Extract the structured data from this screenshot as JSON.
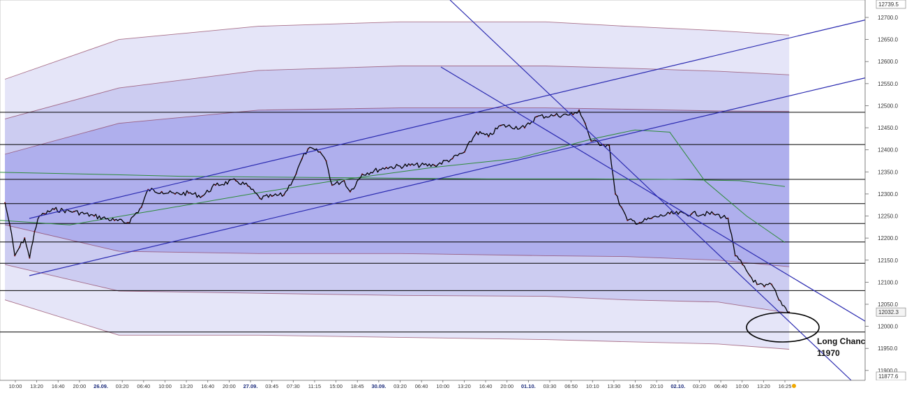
{
  "chart_data": {
    "type": "candlestick",
    "ylim": [
      11877.6,
      12739.5
    ],
    "y_axis": {
      "ticks": [
        11900,
        11950,
        12000,
        12050,
        12100,
        12150,
        12200,
        12250,
        12300,
        12350,
        12400,
        12450,
        12500,
        12550,
        12600,
        12650,
        12700
      ],
      "top_label": "12739.5",
      "bottom_label": "11877.6",
      "last_price_label": "12032.3",
      "last_price": 12032.3
    },
    "x_axis": {
      "labels": [
        "10:00",
        "13:20",
        "16:40",
        "20:00",
        "26.09.",
        "03:20",
        "06:40",
        "10:00",
        "13:20",
        "16:40",
        "20:00",
        "27.09.",
        "03:45",
        "07:30",
        "11:15",
        "15:00",
        "18:45",
        "30.09.",
        "03:20",
        "06:40",
        "10:00",
        "13:20",
        "16:40",
        "20:00",
        "01.10.",
        "03:30",
        "06:50",
        "10:10",
        "13:30",
        "16:50",
        "20:10",
        "02.10.",
        "03:20",
        "06:40",
        "10:00",
        "13:20",
        "16:25"
      ],
      "date_labels": [
        "26.09.",
        "27.09.",
        "30.09.",
        "01.10.",
        "02.10."
      ]
    },
    "horizontal_levels": [
      12485,
      12412,
      12333,
      12278,
      12233,
      12191,
      12143,
      12081,
      11987
    ],
    "bands": [
      {
        "upper": [
          12560,
          12650,
          12680,
          12690,
          12690,
          12680,
          12670,
          12660
        ],
        "lower": [
          12060,
          11980,
          11980,
          11975,
          11970,
          11965,
          11960,
          11948
        ]
      },
      {
        "upper": [
          12470,
          12540,
          12580,
          12590,
          12590,
          12585,
          12578,
          12570
        ],
        "lower": [
          12140,
          12080,
          12075,
          12070,
          12068,
          12060,
          12055,
          12030
        ]
      },
      {
        "upper": [
          12390,
          12460,
          12490,
          12495,
          12495,
          12492,
          12488,
          12487
        ],
        "lower": [
          12230,
          12170,
          12165,
          12165,
          12160,
          12158,
          12150,
          12135
        ]
      }
    ],
    "band_x_dates": [
      "25.09. 10:00",
      "26.09. 06:40",
      "27.09. 03:45",
      "30.09. 03:20",
      "01.10. 03:30",
      "01.10. 16:50",
      "02.10. 06:40",
      "02.10. 16:25"
    ],
    "moving_averages": [
      {
        "name": "",
        "color": "#2e8b3a",
        "values": [
          12349,
          12345,
          12340,
          12338,
          12336,
          12334,
          12334,
          12333,
          12330,
          12317
        ]
      },
      {
        "name": "",
        "color": "#2e8b3a",
        "values": [
          12240,
          12230,
          12262,
          12300,
          12330,
          12360,
          12380,
          12425,
          12445,
          12440,
          12330,
          12250,
          12190
        ]
      }
    ],
    "price_path": [
      {
        "t": "25.09. 10:00",
        "price": 12280
      },
      {
        "t": "25.09. 11:00",
        "price": 12230
      },
      {
        "t": "25.09. 12:00",
        "price": 12160
      },
      {
        "t": "25.09. 13:00",
        "price": 12180
      },
      {
        "t": "25.09. 14:00",
        "price": 12200
      },
      {
        "t": "25.09. 15:00",
        "price": 12155
      },
      {
        "t": "25.09. 16:00",
        "price": 12215
      },
      {
        "t": "25.09. 17:00",
        "price": 12250
      },
      {
        "t": "25.09. 18:00",
        "price": 12255
      },
      {
        "t": "25.09. 20:00",
        "price": 12265
      },
      {
        "t": "26.09. 00:00",
        "price": 12260
      },
      {
        "t": "26.09. 03:00",
        "price": 12250
      },
      {
        "t": "26.09. 06:00",
        "price": 12240
      },
      {
        "t": "26.09. 08:00",
        "price": 12235
      },
      {
        "t": "26.09. 10:00",
        "price": 12270
      },
      {
        "t": "26.09. 11:00",
        "price": 12310
      },
      {
        "t": "26.09. 13:00",
        "price": 12305
      },
      {
        "t": "26.09. 15:00",
        "price": 12300
      },
      {
        "t": "26.09. 17:00",
        "price": 12302
      },
      {
        "t": "26.09. 19:00",
        "price": 12295
      },
      {
        "t": "26.09. 21:00",
        "price": 12320
      },
      {
        "t": "27.09. 00:00",
        "price": 12330
      },
      {
        "t": "27.09. 02:00",
        "price": 12318
      },
      {
        "t": "27.09. 04:00",
        "price": 12290
      },
      {
        "t": "27.09. 06:00",
        "price": 12295
      },
      {
        "t": "27.09. 08:00",
        "price": 12298
      },
      {
        "t": "27.09. 10:00",
        "price": 12345
      },
      {
        "t": "27.09. 11:00",
        "price": 12380
      },
      {
        "t": "27.09. 12:00",
        "price": 12402
      },
      {
        "t": "27.09. 14:00",
        "price": 12395
      },
      {
        "t": "27.09. 15:00",
        "price": 12375
      },
      {
        "t": "27.09. 16:00",
        "price": 12320
      },
      {
        "t": "27.09. 18:00",
        "price": 12330
      },
      {
        "t": "27.09. 19:00",
        "price": 12305
      },
      {
        "t": "27.09. 21:00",
        "price": 12345
      },
      {
        "t": "30.09. 01:00",
        "price": 12360
      },
      {
        "t": "30.09. 05:00",
        "price": 12365
      },
      {
        "t": "30.09. 09:00",
        "price": 12365
      },
      {
        "t": "30.09. 12:00",
        "price": 12380
      },
      {
        "t": "30.09. 14:00",
        "price": 12395
      },
      {
        "t": "30.09. 16:00",
        "price": 12440
      },
      {
        "t": "30.09. 18:00",
        "price": 12430
      },
      {
        "t": "30.09. 20:00",
        "price": 12455
      },
      {
        "t": "01.10. 00:00",
        "price": 12450
      },
      {
        "t": "01.10. 02:00",
        "price": 12475
      },
      {
        "t": "01.10. 05:00",
        "price": 12478
      },
      {
        "t": "01.10. 08:00",
        "price": 12480
      },
      {
        "t": "01.10. 09:00",
        "price": 12490
      },
      {
        "t": "01.10. 10:00",
        "price": 12460
      },
      {
        "t": "01.10. 11:00",
        "price": 12420
      },
      {
        "t": "01.10. 13:00",
        "price": 12412
      },
      {
        "t": "01.10. 14:00",
        "price": 12410
      },
      {
        "t": "01.10. 15:00",
        "price": 12300
      },
      {
        "t": "01.10. 16:00",
        "price": 12270
      },
      {
        "t": "01.10. 17:00",
        "price": 12240
      },
      {
        "t": "01.10. 19:00",
        "price": 12235
      },
      {
        "t": "01.10. 21:00",
        "price": 12245
      },
      {
        "t": "02.10. 00:00",
        "price": 12255
      },
      {
        "t": "02.10. 03:00",
        "price": 12255
      },
      {
        "t": "02.10. 06:00",
        "price": 12255
      },
      {
        "t": "02.10. 08:00",
        "price": 12245
      },
      {
        "t": "02.10. 09:00",
        "price": 12160
      },
      {
        "t": "02.10. 10:00",
        "price": 12140
      },
      {
        "t": "02.10. 11:00",
        "price": 12115
      },
      {
        "t": "02.10. 12:00",
        "price": 12095
      },
      {
        "t": "02.10. 13:00",
        "price": 12090
      },
      {
        "t": "02.10. 14:00",
        "price": 12095
      },
      {
        "t": "02.10. 15:00",
        "price": 12060
      },
      {
        "t": "02.10. 16:25",
        "price": 12032.3
      }
    ],
    "annotation": {
      "line1": "Long Chance, SL",
      "line2": "11970"
    },
    "colors": {
      "band_outer": "#e0e0f7",
      "band_middle": "#c8c8f0",
      "band_inner": "#a9a9ec",
      "band_edge": "#8a3a5a",
      "trendline": "#2a2ab0",
      "moving_average": "#2e8b3a",
      "level": "#000000",
      "price": "#000000"
    }
  }
}
